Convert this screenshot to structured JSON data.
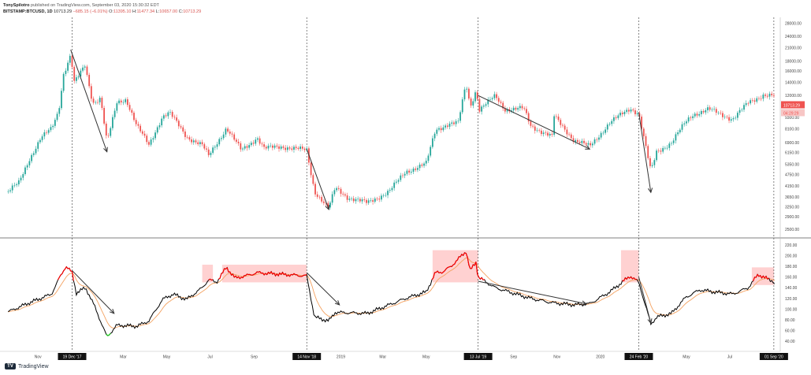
{
  "header": {
    "author": "TonySpilotro",
    "published": "published on TradingView.com, September 03, 2020 15:30:32 EDT",
    "symbol": "BITSTAMP:BTCUSD, 1D",
    "last": "10713.29",
    "change": "−685.15 (−6.01%)",
    "o_label": "O:",
    "o": "11395.10",
    "h_label": "H:",
    "h": "11477.34",
    "l_label": "L:",
    "l": "10657.00",
    "c_label": "C:",
    "c": "10713.29"
  },
  "footer": {
    "brand": "TradingView",
    "brand_mark": "TV"
  },
  "colors": {
    "up": "#26a69a",
    "down": "#ef5350",
    "osc": "#000000",
    "osc_signal": "#f4a261",
    "overbought": "#ff0000",
    "oversold": "#22cc22",
    "zone": "#ffc9c9",
    "price_tag": "#ef5350"
  },
  "chart_data": [
    {
      "type": "candlestick",
      "series_name": "BITSTAMP:BTCUSD",
      "y_scale": "log",
      "y_ticks": [
        "28000.00",
        "24000.00",
        "21000.00",
        "18000.00",
        "16000.00",
        "14000.00",
        "12000.00",
        "10700.00",
        "9300.00",
        "8100.00",
        "6900.00",
        "6150.00",
        "5350.00",
        "4750.00",
        "4150.00",
        "3650.00",
        "3250.00",
        "2900.00",
        "2500.00"
      ],
      "price_label": "10713.29",
      "countdown_label": "04:29:29",
      "x_ticks": [
        "Nov",
        "19 Dec '17",
        "Mar",
        "May",
        "Jul",
        "Sep",
        "14 Nov '18",
        "2019",
        "Mar",
        "May",
        "13 Jul '19",
        "Sep",
        "Nov",
        "2020",
        "24 Feb '20",
        "May",
        "Jul",
        "01 Sep '20"
      ],
      "points": [
        {
          "d": "2017-09-20",
          "p": 3900
        },
        {
          "d": "2017-10-05",
          "p": 4300
        },
        {
          "d": "2017-10-20",
          "p": 5700
        },
        {
          "d": "2017-11-05",
          "p": 7300
        },
        {
          "d": "2017-11-20",
          "p": 8100
        },
        {
          "d": "2017-11-30",
          "p": 10000
        },
        {
          "d": "2017-12-07",
          "p": 15500
        },
        {
          "d": "2017-12-17",
          "p": 19400
        },
        {
          "d": "2017-12-22",
          "p": 14000
        },
        {
          "d": "2017-12-28",
          "p": 15000
        },
        {
          "d": "2018-01-06",
          "p": 17000
        },
        {
          "d": "2018-01-17",
          "p": 11000
        },
        {
          "d": "2018-01-28",
          "p": 11700
        },
        {
          "d": "2018-02-06",
          "p": 6900
        },
        {
          "d": "2018-02-20",
          "p": 11000
        },
        {
          "d": "2018-03-05",
          "p": 11500
        },
        {
          "d": "2018-03-20",
          "p": 8400
        },
        {
          "d": "2018-04-06",
          "p": 6700
        },
        {
          "d": "2018-04-25",
          "p": 9400
        },
        {
          "d": "2018-05-05",
          "p": 9800
        },
        {
          "d": "2018-05-29",
          "p": 7400
        },
        {
          "d": "2018-06-20",
          "p": 6700
        },
        {
          "d": "2018-06-29",
          "p": 5900
        },
        {
          "d": "2018-07-24",
          "p": 8200
        },
        {
          "d": "2018-08-14",
          "p": 6300
        },
        {
          "d": "2018-08-30",
          "p": 7000
        },
        {
          "d": "2018-09-05",
          "p": 7350
        },
        {
          "d": "2018-09-15",
          "p": 6450
        },
        {
          "d": "2018-10-10",
          "p": 6600
        },
        {
          "d": "2018-11-14",
          "p": 6300
        },
        {
          "d": "2018-11-20",
          "p": 4800
        },
        {
          "d": "2018-11-25",
          "p": 3900
        },
        {
          "d": "2018-12-15",
          "p": 3200
        },
        {
          "d": "2018-12-24",
          "p": 4050
        },
        {
          "d": "2019-01-10",
          "p": 3650
        },
        {
          "d": "2019-02-07",
          "p": 3400
        },
        {
          "d": "2019-03-10",
          "p": 3900
        },
        {
          "d": "2019-04-02",
          "p": 4900
        },
        {
          "d": "2019-05-01",
          "p": 5400
        },
        {
          "d": "2019-05-14",
          "p": 8000
        },
        {
          "d": "2019-06-01",
          "p": 8600
        },
        {
          "d": "2019-06-15",
          "p": 8700
        },
        {
          "d": "2019-06-26",
          "p": 13800
        },
        {
          "d": "2019-07-02",
          "p": 10500
        },
        {
          "d": "2019-07-10",
          "p": 12800
        },
        {
          "d": "2019-07-15",
          "p": 10200
        },
        {
          "d": "2019-08-06",
          "p": 11900
        },
        {
          "d": "2019-08-20",
          "p": 10200
        },
        {
          "d": "2019-09-15",
          "p": 10300
        },
        {
          "d": "2019-09-25",
          "p": 8400
        },
        {
          "d": "2019-10-25",
          "p": 7400
        },
        {
          "d": "2019-10-27",
          "p": 9500
        },
        {
          "d": "2019-11-25",
          "p": 7100
        },
        {
          "d": "2019-12-17",
          "p": 6600
        },
        {
          "d": "2020-01-14",
          "p": 8700
        },
        {
          "d": "2020-02-12",
          "p": 10350
        },
        {
          "d": "2020-02-24",
          "p": 9700
        },
        {
          "d": "2020-03-12",
          "p": 4900
        },
        {
          "d": "2020-03-20",
          "p": 6200
        },
        {
          "d": "2020-04-10",
          "p": 6900
        },
        {
          "d": "2020-04-30",
          "p": 8800
        },
        {
          "d": "2020-05-10",
          "p": 9600
        },
        {
          "d": "2020-06-01",
          "p": 10200
        },
        {
          "d": "2020-07-05",
          "p": 9100
        },
        {
          "d": "2020-07-27",
          "p": 11000
        },
        {
          "d": "2020-08-17",
          "p": 12100
        },
        {
          "d": "2020-09-01",
          "p": 11900
        },
        {
          "d": "2020-09-03",
          "p": 10713
        }
      ],
      "annotations": [
        {
          "type": "arrow",
          "from": {
            "d": "2017-12-17",
            "p": 20500
          },
          "to": {
            "d": "2018-02-06",
            "p": 6200
          }
        },
        {
          "type": "arrow",
          "from": {
            "d": "2018-11-14",
            "p": 6400
          },
          "to": {
            "d": "2018-12-15",
            "p": 3150
          }
        },
        {
          "type": "arrow",
          "from": {
            "d": "2019-07-13",
            "p": 12000
          },
          "to": {
            "d": "2019-12-17",
            "p": 6400
          }
        },
        {
          "type": "arrow",
          "from": {
            "d": "2020-02-24",
            "p": 9800
          },
          "to": {
            "d": "2020-03-12",
            "p": 3850
          }
        }
      ],
      "markers": [
        "2017-12-19",
        "2018-11-14",
        "2019-07-13",
        "2020-02-24",
        "2020-09-01"
      ]
    },
    {
      "type": "line",
      "series_name": "oscillator",
      "y_range": [
        40,
        230
      ],
      "y_ticks": [
        "220.00",
        "200.00",
        "180.00",
        "160.00",
        "140.00",
        "120.00",
        "100.00",
        "80.00",
        "60.00",
        "40.00"
      ],
      "zones": [
        {
          "from": "2018-06-20",
          "to": "2018-07-05",
          "lo": 150,
          "hi": 183
        },
        {
          "from": "2018-07-18",
          "to": "2018-11-14",
          "lo": 150,
          "hi": 183
        },
        {
          "from": "2019-05-10",
          "to": "2019-07-13",
          "lo": 150,
          "hi": 210
        },
        {
          "from": "2020-01-30",
          "to": "2020-02-24",
          "lo": 150,
          "hi": 210
        },
        {
          "from": "2020-08-01",
          "to": "2020-09-01",
          "lo": 145,
          "hi": 178
        }
      ],
      "points": [
        {
          "d": "2017-09-20",
          "v": 95
        },
        {
          "d": "2017-10-20",
          "v": 112
        },
        {
          "d": "2017-11-20",
          "v": 128
        },
        {
          "d": "2017-12-01",
          "v": 158
        },
        {
          "d": "2017-12-10",
          "v": 180
        },
        {
          "d": "2017-12-19",
          "v": 168
        },
        {
          "d": "2017-12-25",
          "v": 130
        },
        {
          "d": "2018-01-07",
          "v": 140
        },
        {
          "d": "2018-01-20",
          "v": 104
        },
        {
          "d": "2018-02-06",
          "v": 48
        },
        {
          "d": "2018-02-20",
          "v": 70
        },
        {
          "d": "2018-03-20",
          "v": 68
        },
        {
          "d": "2018-04-06",
          "v": 78
        },
        {
          "d": "2018-04-25",
          "v": 118
        },
        {
          "d": "2018-05-10",
          "v": 128
        },
        {
          "d": "2018-05-29",
          "v": 118
        },
        {
          "d": "2018-06-20",
          "v": 140
        },
        {
          "d": "2018-06-29",
          "v": 155
        },
        {
          "d": "2018-07-10",
          "v": 150
        },
        {
          "d": "2018-07-24",
          "v": 178
        },
        {
          "d": "2018-08-05",
          "v": 158
        },
        {
          "d": "2018-08-20",
          "v": 162
        },
        {
          "d": "2018-09-05",
          "v": 168
        },
        {
          "d": "2018-10-10",
          "v": 165
        },
        {
          "d": "2018-11-14",
          "v": 162
        },
        {
          "d": "2018-11-25",
          "v": 85
        },
        {
          "d": "2018-12-15",
          "v": 78
        },
        {
          "d": "2018-12-24",
          "v": 94
        },
        {
          "d": "2019-02-07",
          "v": 92
        },
        {
          "d": "2019-04-02",
          "v": 120
        },
        {
          "d": "2019-05-01",
          "v": 132
        },
        {
          "d": "2019-05-14",
          "v": 168
        },
        {
          "d": "2019-05-25",
          "v": 170
        },
        {
          "d": "2019-06-05",
          "v": 180
        },
        {
          "d": "2019-06-26",
          "v": 208
        },
        {
          "d": "2019-07-02",
          "v": 172
        },
        {
          "d": "2019-07-10",
          "v": 188
        },
        {
          "d": "2019-07-13",
          "v": 160
        },
        {
          "d": "2019-08-06",
          "v": 140
        },
        {
          "d": "2019-09-25",
          "v": 120
        },
        {
          "d": "2019-10-25",
          "v": 112
        },
        {
          "d": "2019-11-25",
          "v": 108
        },
        {
          "d": "2019-12-17",
          "v": 110
        },
        {
          "d": "2020-01-14",
          "v": 132
        },
        {
          "d": "2020-02-12",
          "v": 162
        },
        {
          "d": "2020-02-24",
          "v": 150
        },
        {
          "d": "2020-03-12",
          "v": 72
        },
        {
          "d": "2020-03-20",
          "v": 85
        },
        {
          "d": "2020-04-10",
          "v": 92
        },
        {
          "d": "2020-04-30",
          "v": 122
        },
        {
          "d": "2020-05-20",
          "v": 136
        },
        {
          "d": "2020-06-10",
          "v": 132
        },
        {
          "d": "2020-07-05",
          "v": 128
        },
        {
          "d": "2020-07-27",
          "v": 140
        },
        {
          "d": "2020-08-10",
          "v": 165
        },
        {
          "d": "2020-08-20",
          "v": 158
        },
        {
          "d": "2020-09-01",
          "v": 152
        },
        {
          "d": "2020-09-03",
          "v": 140
        }
      ],
      "annotations": [
        {
          "type": "arrow",
          "from": {
            "d": "2017-12-19",
            "v": 172
          },
          "to": {
            "d": "2018-02-16",
            "v": 92
          }
        },
        {
          "type": "arrow",
          "from": {
            "d": "2018-11-14",
            "v": 168
          },
          "to": {
            "d": "2018-12-30",
            "v": 108
          }
        },
        {
          "type": "arrow",
          "from": {
            "d": "2019-07-13",
            "v": 152
          },
          "to": {
            "d": "2019-12-12",
            "v": 110
          }
        },
        {
          "type": "arrow",
          "from": {
            "d": "2020-02-24",
            "v": 160
          },
          "to": {
            "d": "2020-03-12",
            "v": 74
          }
        }
      ]
    }
  ]
}
